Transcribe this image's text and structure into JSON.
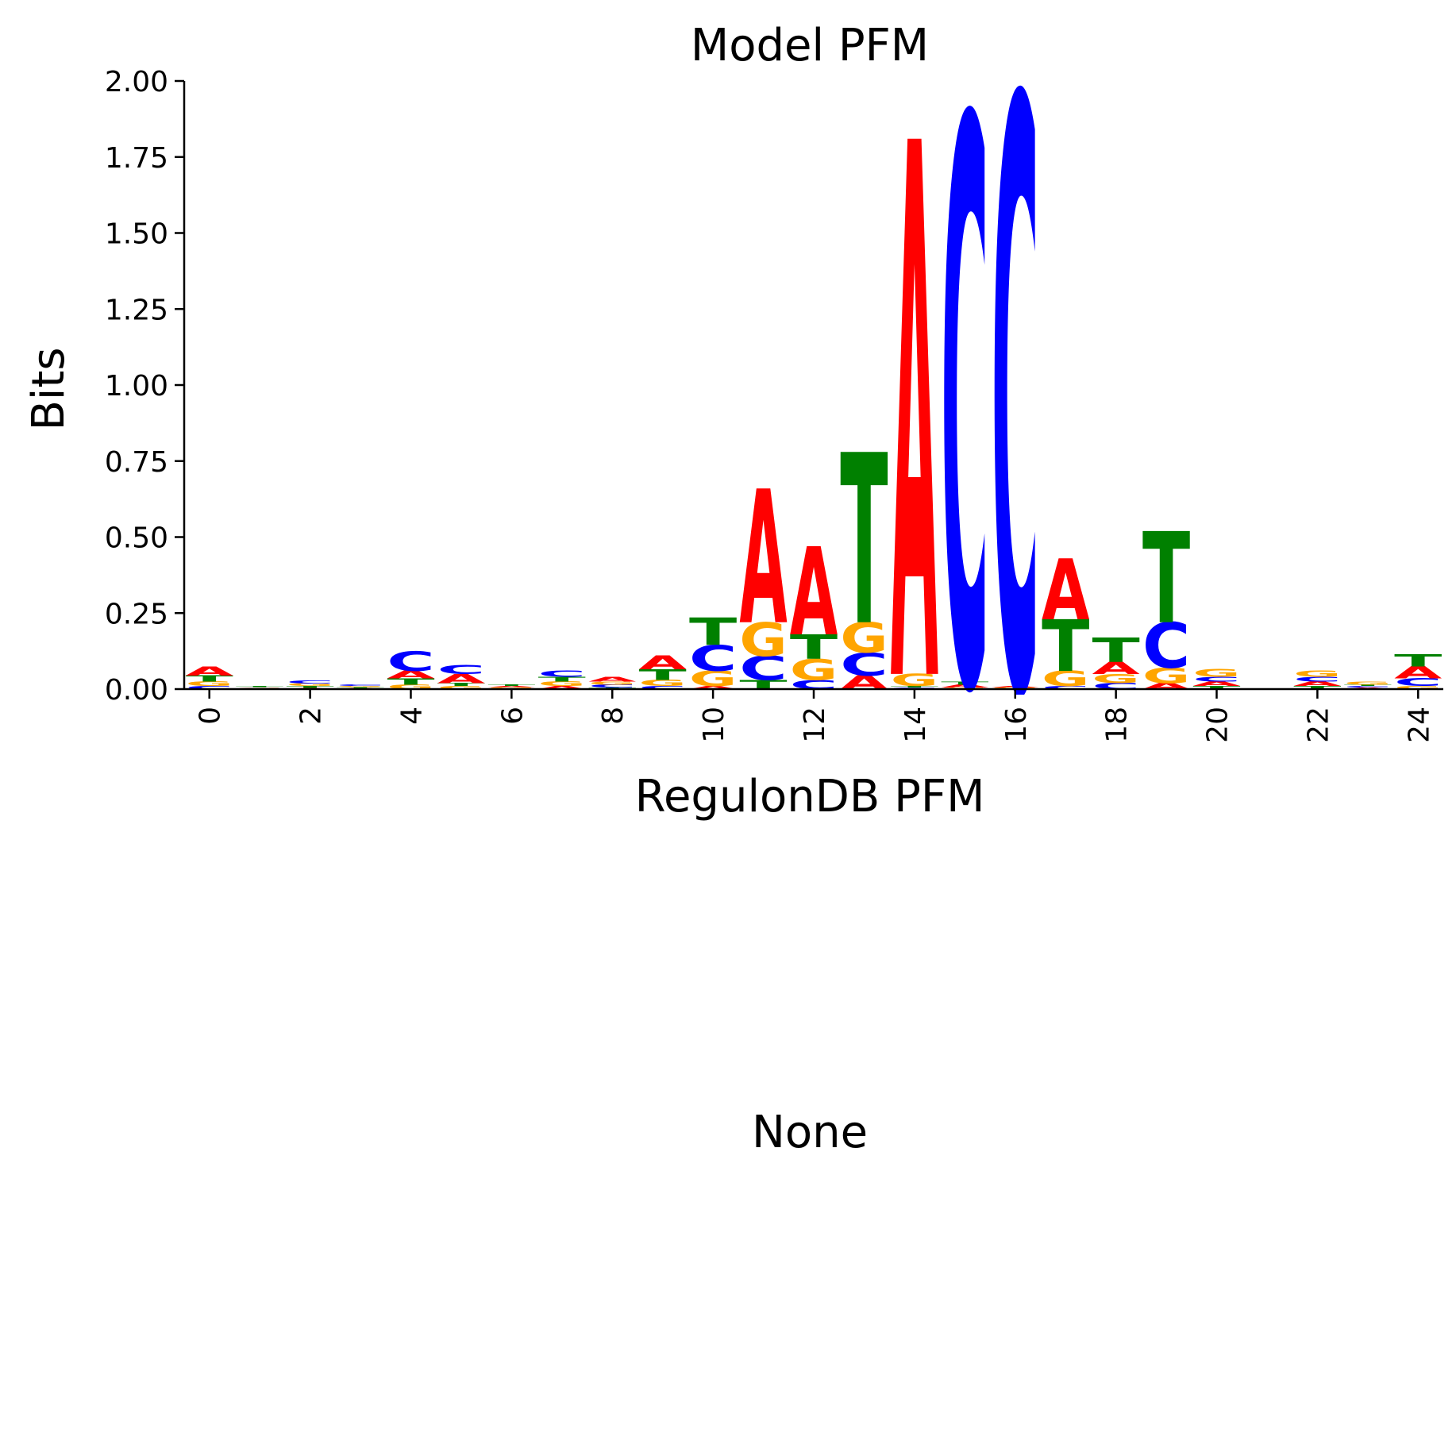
{
  "figure": {
    "title": "Model PFM",
    "ylabel": "Bits",
    "xlabel": "RegulonDB PFM",
    "second_title": "None"
  },
  "colors": {
    "A": "#ff0000",
    "C": "#0000ff",
    "G": "#ffa500",
    "T": "#008000"
  },
  "chart_data": {
    "type": "sequence-logo",
    "title": "Model PFM",
    "xlabel": "RegulonDB PFM",
    "ylabel": "Bits",
    "xlim": [
      -0.5,
      24.5
    ],
    "ylim": [
      0,
      2.0
    ],
    "yticks": [
      "0.00",
      "0.25",
      "0.50",
      "0.75",
      "1.00",
      "1.25",
      "1.50",
      "1.75",
      "2.00"
    ],
    "xticks": [
      "0",
      "2",
      "4",
      "6",
      "8",
      "10",
      "12",
      "14",
      "16",
      "18",
      "20",
      "22",
      "24"
    ],
    "positions": [
      {
        "pos": 0,
        "A": 0.03,
        "C": 0.01,
        "G": 0.015,
        "T": 0.02
      },
      {
        "pos": 1,
        "A": 0.002,
        "C": 0.002,
        "G": 0.002,
        "T": 0.004
      },
      {
        "pos": 2,
        "A": 0.004,
        "C": 0.01,
        "G": 0.008,
        "T": 0.006
      },
      {
        "pos": 3,
        "A": 0.003,
        "C": 0.005,
        "G": 0.004,
        "T": 0.003
      },
      {
        "pos": 4,
        "A": 0.025,
        "C": 0.065,
        "G": 0.015,
        "T": 0.02
      },
      {
        "pos": 5,
        "A": 0.03,
        "C": 0.03,
        "G": 0.01,
        "T": 0.01
      },
      {
        "pos": 6,
        "A": 0.004,
        "C": 0.003,
        "G": 0.003,
        "T": 0.005
      },
      {
        "pos": 7,
        "A": 0.01,
        "C": 0.02,
        "G": 0.015,
        "T": 0.015
      },
      {
        "pos": 8,
        "A": 0.015,
        "C": 0.01,
        "G": 0.01,
        "T": 0.005
      },
      {
        "pos": 9,
        "A": 0.045,
        "C": 0.01,
        "G": 0.02,
        "T": 0.035
      },
      {
        "pos": 10,
        "A": 0.01,
        "C": 0.085,
        "G": 0.05,
        "T": 0.09
      },
      {
        "pos": 11,
        "A": 0.44,
        "C": 0.08,
        "G": 0.11,
        "T": 0.03
      },
      {
        "pos": 12,
        "A": 0.29,
        "C": 0.03,
        "G": 0.07,
        "T": 0.08
      },
      {
        "pos": 13,
        "A": 0.045,
        "C": 0.075,
        "G": 0.1,
        "T": 0.56
      },
      {
        "pos": 14,
        "A": 1.76,
        "C": 0.005,
        "G": 0.04,
        "T": 0.005
      },
      {
        "pos": 15,
        "A": 0.01,
        "C": 1.86,
        "G": 0.005,
        "T": 0.01
      },
      {
        "pos": 16,
        "A": 0.005,
        "C": 1.94,
        "G": 0.003,
        "T": 0.002
      },
      {
        "pos": 17,
        "A": 0.2,
        "C": 0.01,
        "G": 0.05,
        "T": 0.17
      },
      {
        "pos": 18,
        "A": 0.04,
        "C": 0.02,
        "G": 0.03,
        "T": 0.08
      },
      {
        "pos": 19,
        "A": 0.02,
        "C": 0.15,
        "G": 0.05,
        "T": 0.3
      },
      {
        "pos": 20,
        "A": 0.015,
        "C": 0.015,
        "G": 0.025,
        "T": 0.01
      },
      {
        "pos": 21,
        "A": 0.0,
        "C": 0.0,
        "G": 0.0,
        "T": 0.0
      },
      {
        "pos": 22,
        "A": 0.015,
        "C": 0.015,
        "G": 0.02,
        "T": 0.01
      },
      {
        "pos": 23,
        "A": 0.005,
        "C": 0.005,
        "G": 0.01,
        "T": 0.005
      },
      {
        "pos": 24,
        "A": 0.04,
        "C": 0.025,
        "G": 0.01,
        "T": 0.04
      }
    ]
  }
}
